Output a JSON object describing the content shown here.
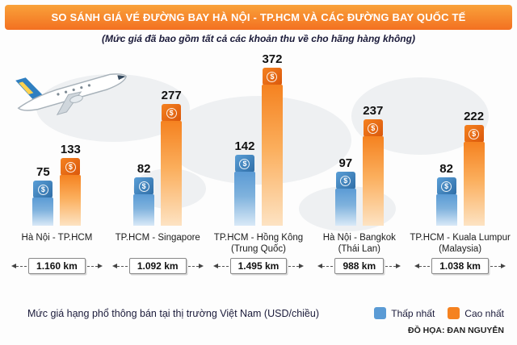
{
  "header": {
    "title": "SO SÁNH GIÁ VÉ ĐƯỜNG BAY HÀ NỘI - TP.HCM VÀ CÁC ĐƯỜNG BAY QUỐC TẾ",
    "subtitle": "(Mức giá đã bao gồm tất cả các khoản thu về cho hãng hàng không)"
  },
  "chart_data": {
    "type": "bar",
    "categories": [
      {
        "label": "Hà Nội - TP.HCM",
        "sublabel": ""
      },
      {
        "label": "TP.HCM - Singapore",
        "sublabel": ""
      },
      {
        "label": "TP.HCM - Hồng Kông",
        "sublabel": "(Trung Quốc)"
      },
      {
        "label": "Hà Nội - Bangkok",
        "sublabel": "(Thái Lan)"
      },
      {
        "label": "TP.HCM - Kuala Lumpur",
        "sublabel": "(Malaysia)"
      }
    ],
    "series": [
      {
        "name": "Thấp nhất",
        "color": "#5b9bd5",
        "values": [
          75,
          82,
          142,
          97,
          82
        ]
      },
      {
        "name": "Cao nhất",
        "color": "#f58220",
        "values": [
          133,
          277,
          372,
          237,
          222
        ]
      }
    ],
    "distances": [
      "1.160 km",
      "1.092 km",
      "1.495 km",
      "988 km",
      "1.038 km"
    ],
    "ylim": [
      0,
      372
    ],
    "unit": "USD/chiều",
    "legend_position": "bottom-right",
    "grid": false
  },
  "footer": {
    "note": "Mức giá hạng phổ thông bán tại thị trường Việt Nam (USD/chiều)",
    "credit": "ĐỒ HỌA: ĐAN NGUYỄN"
  },
  "icons": {
    "dollar_cube": "$",
    "airplane": "airplane-illustration"
  }
}
